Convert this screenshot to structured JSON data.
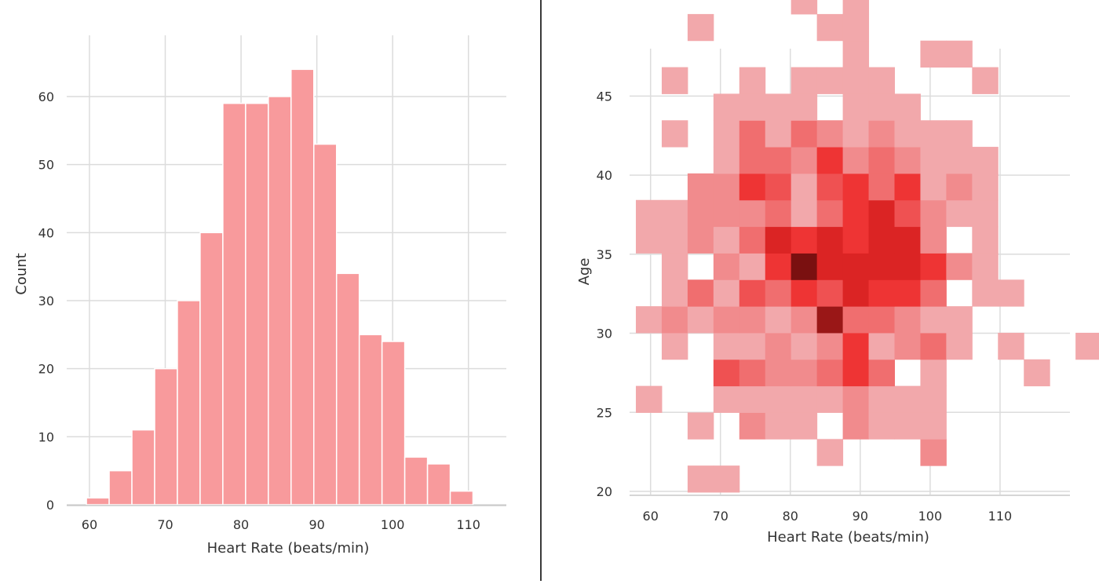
{
  "chart_data": [
    {
      "type": "bar",
      "chart_kind": "histogram",
      "xlabel": "Heart Rate (beats/min)",
      "ylabel": "Count",
      "xlim": [
        57,
        115
      ],
      "ylim": [
        0,
        69
      ],
      "xticks": [
        60,
        70,
        80,
        90,
        100,
        110
      ],
      "yticks": [
        0,
        10,
        20,
        30,
        40,
        50,
        60
      ],
      "bin_edges": [
        59.6,
        62.6,
        65.6,
        68.6,
        71.6,
        74.6,
        77.6,
        80.6,
        83.6,
        86.6,
        89.6,
        92.6,
        95.6,
        98.6,
        101.6,
        104.6,
        107.6,
        110.6,
        113.6
      ],
      "values": [
        1,
        5,
        11,
        20,
        30,
        40,
        59,
        59,
        60,
        64,
        53,
        34,
        25,
        24,
        7,
        6,
        2,
        0
      ],
      "bar_color": "#f89a9c",
      "grid": true
    },
    {
      "type": "heatmap",
      "chart_kind": "2d-histogram",
      "xlabel": "Heart Rate (beats/min)",
      "ylabel": "Age",
      "xlim": [
        57,
        120
      ],
      "ylim": [
        19.8,
        48
      ],
      "xticks": [
        60,
        70,
        80,
        90,
        100,
        110
      ],
      "yticks": [
        20,
        25,
        30,
        35,
        40,
        45
      ],
      "x_bin_start": 57.9,
      "x_bin_width": 3.7,
      "y_bin_start": 19.95,
      "y_bin_width": 1.68,
      "color_low": "#f2a8ab",
      "color_high": "#7a1010",
      "grid": true,
      "cells": [
        [
          2,
          0,
          1
        ],
        [
          3,
          0,
          1
        ],
        [
          7,
          1,
          1
        ],
        [
          11,
          1,
          2
        ],
        [
          2,
          2,
          1
        ],
        [
          4,
          2,
          2
        ],
        [
          5,
          2,
          1
        ],
        [
          6,
          2,
          1
        ],
        [
          8,
          2,
          2
        ],
        [
          9,
          2,
          1
        ],
        [
          10,
          2,
          1
        ],
        [
          11,
          2,
          1
        ],
        [
          0,
          3,
          1
        ],
        [
          3,
          3,
          1
        ],
        [
          4,
          3,
          1
        ],
        [
          5,
          3,
          1
        ],
        [
          6,
          3,
          1
        ],
        [
          7,
          3,
          1
        ],
        [
          8,
          3,
          2
        ],
        [
          9,
          3,
          1
        ],
        [
          10,
          3,
          1
        ],
        [
          11,
          3,
          1
        ],
        [
          3,
          4,
          4
        ],
        [
          4,
          4,
          3
        ],
        [
          5,
          4,
          2
        ],
        [
          6,
          4,
          2
        ],
        [
          7,
          4,
          3
        ],
        [
          8,
          4,
          5
        ],
        [
          9,
          4,
          3
        ],
        [
          11,
          4,
          1
        ],
        [
          15,
          4,
          1
        ],
        [
          1,
          5,
          1
        ],
        [
          3,
          5,
          1
        ],
        [
          4,
          5,
          1
        ],
        [
          5,
          5,
          2
        ],
        [
          6,
          5,
          1
        ],
        [
          7,
          5,
          2
        ],
        [
          8,
          5,
          5
        ],
        [
          9,
          5,
          1
        ],
        [
          10,
          5,
          2
        ],
        [
          11,
          5,
          3
        ],
        [
          12,
          5,
          1
        ],
        [
          14,
          5,
          1
        ],
        [
          17,
          5,
          1
        ],
        [
          0,
          6,
          1
        ],
        [
          1,
          6,
          2
        ],
        [
          2,
          6,
          1
        ],
        [
          3,
          6,
          2
        ],
        [
          4,
          6,
          2
        ],
        [
          5,
          6,
          1
        ],
        [
          6,
          6,
          2
        ],
        [
          7,
          6,
          8
        ],
        [
          8,
          6,
          3
        ],
        [
          9,
          6,
          3
        ],
        [
          10,
          6,
          2
        ],
        [
          11,
          6,
          1
        ],
        [
          12,
          6,
          1
        ],
        [
          1,
          7,
          1
        ],
        [
          2,
          7,
          3
        ],
        [
          3,
          7,
          1
        ],
        [
          4,
          7,
          4
        ],
        [
          5,
          7,
          3
        ],
        [
          6,
          7,
          5
        ],
        [
          7,
          7,
          4
        ],
        [
          8,
          7,
          6
        ],
        [
          9,
          7,
          5
        ],
        [
          10,
          7,
          5
        ],
        [
          11,
          7,
          3
        ],
        [
          13,
          7,
          1
        ],
        [
          14,
          7,
          1
        ],
        [
          1,
          8,
          1
        ],
        [
          3,
          8,
          2
        ],
        [
          4,
          8,
          1
        ],
        [
          5,
          8,
          5
        ],
        [
          6,
          8,
          9
        ],
        [
          7,
          8,
          6
        ],
        [
          8,
          8,
          6
        ],
        [
          9,
          8,
          6
        ],
        [
          10,
          8,
          6
        ],
        [
          11,
          8,
          5
        ],
        [
          12,
          8,
          2
        ],
        [
          13,
          8,
          1
        ],
        [
          0,
          9,
          1
        ],
        [
          1,
          9,
          1
        ],
        [
          2,
          9,
          2
        ],
        [
          3,
          9,
          1
        ],
        [
          4,
          9,
          3
        ],
        [
          5,
          9,
          6
        ],
        [
          6,
          9,
          5
        ],
        [
          7,
          9,
          6
        ],
        [
          8,
          9,
          5
        ],
        [
          9,
          9,
          6
        ],
        [
          10,
          9,
          6
        ],
        [
          11,
          9,
          2
        ],
        [
          13,
          9,
          1
        ],
        [
          0,
          10,
          1
        ],
        [
          1,
          10,
          1
        ],
        [
          2,
          10,
          2
        ],
        [
          3,
          10,
          2
        ],
        [
          4,
          10,
          2
        ],
        [
          5,
          10,
          3
        ],
        [
          6,
          10,
          1
        ],
        [
          7,
          10,
          3
        ],
        [
          8,
          10,
          5
        ],
        [
          9,
          10,
          6
        ],
        [
          10,
          10,
          4
        ],
        [
          11,
          10,
          2
        ],
        [
          12,
          10,
          1
        ],
        [
          13,
          10,
          1
        ],
        [
          2,
          11,
          2
        ],
        [
          3,
          11,
          2
        ],
        [
          4,
          11,
          5
        ],
        [
          5,
          11,
          4
        ],
        [
          6,
          11,
          1
        ],
        [
          7,
          11,
          4
        ],
        [
          8,
          11,
          5
        ],
        [
          9,
          11,
          3
        ],
        [
          10,
          11,
          5
        ],
        [
          11,
          11,
          1
        ],
        [
          12,
          11,
          2
        ],
        [
          13,
          11,
          1
        ],
        [
          3,
          12,
          1
        ],
        [
          4,
          12,
          3
        ],
        [
          5,
          12,
          3
        ],
        [
          6,
          12,
          2
        ],
        [
          7,
          12,
          5
        ],
        [
          8,
          12,
          2
        ],
        [
          9,
          12,
          3
        ],
        [
          10,
          12,
          2
        ],
        [
          11,
          12,
          1
        ],
        [
          12,
          12,
          1
        ],
        [
          13,
          12,
          1
        ],
        [
          1,
          13,
          1
        ],
        [
          3,
          13,
          1
        ],
        [
          4,
          13,
          3
        ],
        [
          5,
          13,
          1
        ],
        [
          6,
          13,
          3
        ],
        [
          7,
          13,
          2
        ],
        [
          8,
          13,
          1
        ],
        [
          9,
          13,
          2
        ],
        [
          10,
          13,
          1
        ],
        [
          11,
          13,
          1
        ],
        [
          12,
          13,
          1
        ],
        [
          3,
          14,
          1
        ],
        [
          4,
          14,
          1
        ],
        [
          5,
          14,
          1
        ],
        [
          6,
          14,
          1
        ],
        [
          8,
          14,
          1
        ],
        [
          9,
          14,
          1
        ],
        [
          10,
          14,
          1
        ],
        [
          1,
          15,
          1
        ],
        [
          4,
          15,
          1
        ],
        [
          6,
          15,
          1
        ],
        [
          7,
          15,
          1
        ],
        [
          8,
          15,
          1
        ],
        [
          9,
          15,
          1
        ],
        [
          13,
          15,
          1
        ],
        [
          8,
          16,
          1
        ],
        [
          11,
          16,
          1
        ],
        [
          12,
          16,
          1
        ],
        [
          2,
          17,
          1
        ],
        [
          7,
          17,
          1
        ],
        [
          8,
          17,
          1
        ],
        [
          6,
          18,
          1
        ],
        [
          8,
          18,
          1
        ]
      ]
    }
  ]
}
